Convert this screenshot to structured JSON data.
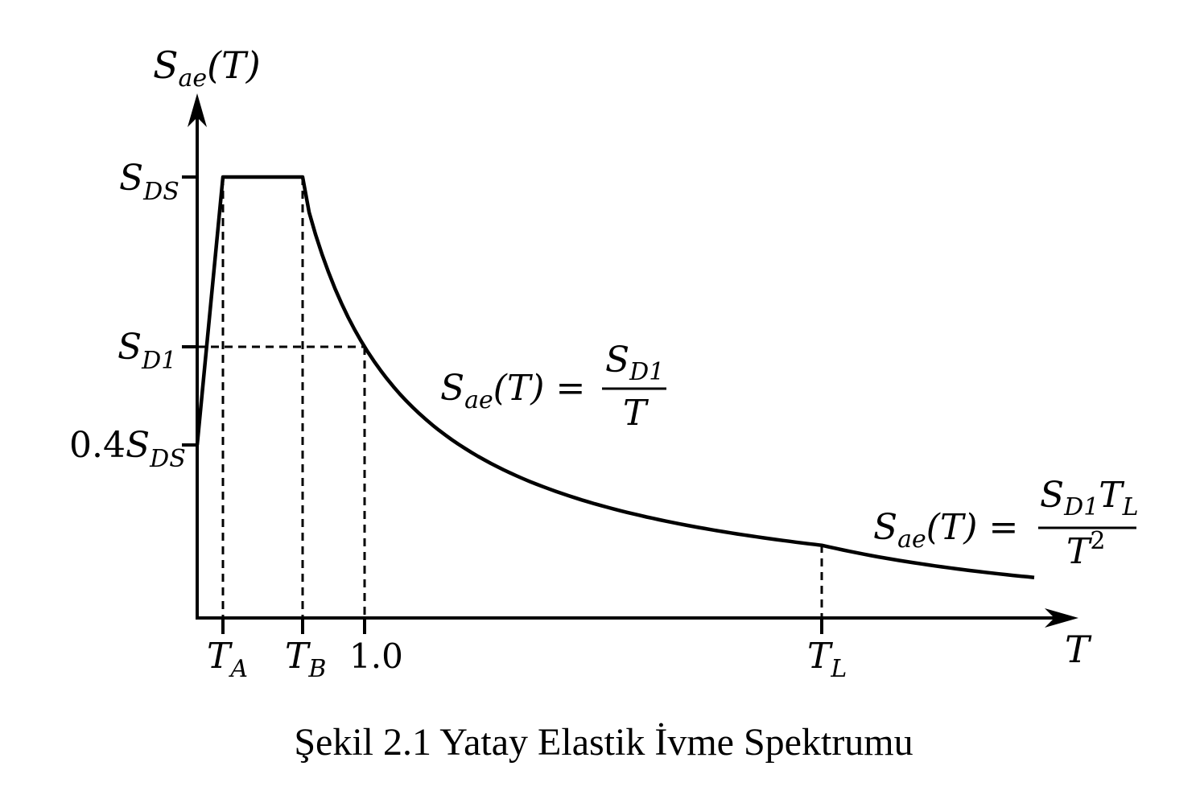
{
  "diagram": {
    "y_axis_label": {
      "main": "S",
      "sub": "ae",
      "rest": "(T)"
    },
    "x_axis_label": "T",
    "y_ticks": {
      "sds": {
        "main": "S",
        "sub": "DS"
      },
      "sd1": {
        "main": "S",
        "sub": "D1"
      },
      "04sds": {
        "prefix": "0.4",
        "main": "S",
        "sub": "DS"
      }
    },
    "x_ticks": {
      "ta": {
        "main": "T",
        "sub": "A"
      },
      "tb": {
        "main": "T",
        "sub": "B"
      },
      "one": "1.0",
      "tl": {
        "main": "T",
        "sub": "L"
      }
    },
    "formula1": {
      "lhs_main": "S",
      "lhs_sub": "ae",
      "lhs_rest": "(T) =",
      "num_main": "S",
      "num_sub": "D1",
      "den": "T"
    },
    "formula2": {
      "lhs_main": "S",
      "lhs_sub": "ae",
      "lhs_rest": "(T) =",
      "num_main1": "S",
      "num_sub1": "D1",
      "num_main2": "T",
      "num_sub2": "L",
      "den_main": "T",
      "den_sup": "2"
    }
  },
  "caption": "Şekil 2.1 Yatay Elastik İvme Spektrumu"
}
